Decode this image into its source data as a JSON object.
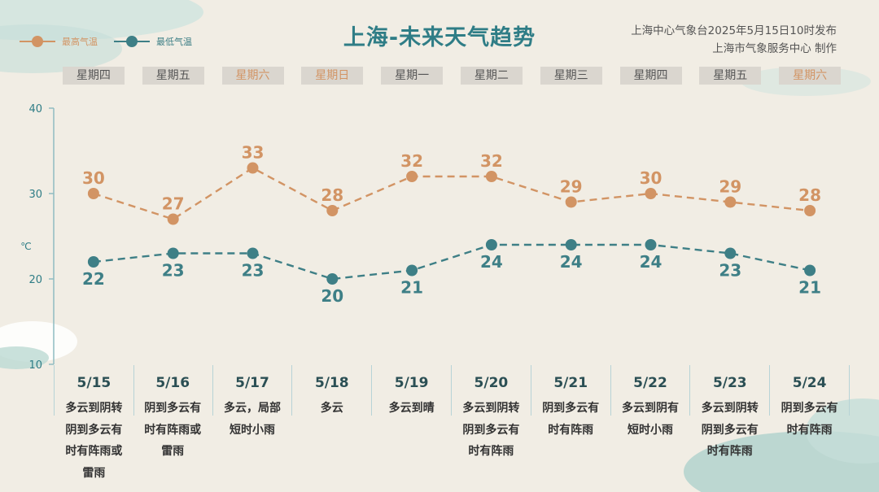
{
  "header": {
    "title": "上海-未来天气趋势",
    "issuer_line1": "上海中心气象台2025年5月15日10时发布",
    "issuer_line2": "上海市气象服务中心 制作"
  },
  "legend": {
    "high_label": "最高气温",
    "low_label": "最低气温",
    "high_color": "#d29464",
    "low_color": "#3e7f86"
  },
  "chart_data": {
    "type": "line",
    "categories": [
      "5/15",
      "5/16",
      "5/17",
      "5/18",
      "5/19",
      "5/20",
      "5/21",
      "5/22",
      "5/23",
      "5/24"
    ],
    "weekdays": [
      "星期四",
      "星期五",
      "星期六",
      "星期日",
      "星期一",
      "星期二",
      "星期三",
      "星期四",
      "星期五",
      "星期六"
    ],
    "series": [
      {
        "name": "最高气温",
        "values": [
          30,
          27,
          33,
          28,
          32,
          32,
          29,
          30,
          29,
          28
        ],
        "color": "#d29464"
      },
      {
        "name": "最低气温",
        "values": [
          22,
          23,
          23,
          20,
          21,
          24,
          24,
          24,
          23,
          21
        ],
        "color": "#3e7f86"
      }
    ],
    "ylabel": "℃",
    "ylim": [
      10,
      40
    ],
    "yticks": [
      10,
      20,
      30,
      40
    ],
    "weather": [
      "多云到阴转\n阴到多云有\n时有阵雨或\n雷雨",
      "阴到多云有\n时有阵雨或\n雷雨",
      "多云，局部\n短时小雨",
      "多云",
      "多云到晴",
      "多云到阴转\n阴到多云有\n时有阵雨",
      "阴到多云有\n时有阵雨",
      "多云到阴有\n短时小雨",
      "多云到阴转\n阴到多云有\n时有阵雨",
      "阴到多云有\n时有阵雨"
    ]
  }
}
